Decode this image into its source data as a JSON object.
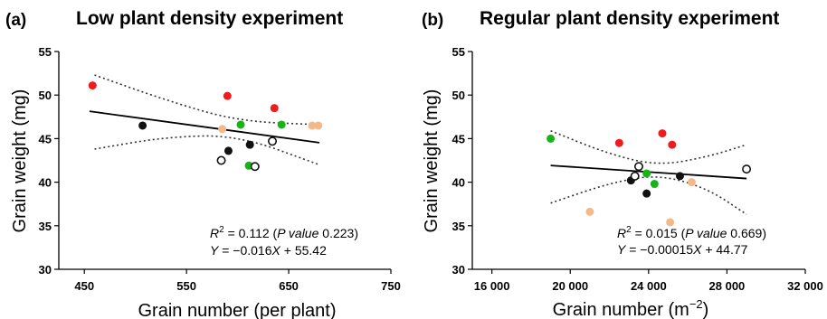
{
  "chart_data": [
    {
      "type": "scatter",
      "panel_label": "(a)",
      "title": "Low plant density experiment",
      "xlabel": "Grain number (per plant)",
      "ylabel": "Grain weight (mg)",
      "xlim": [
        425,
        750
      ],
      "ylim": [
        30,
        55
      ],
      "xticks": [
        450,
        550,
        650,
        750
      ],
      "xtick_labels": [
        "450",
        "550",
        "650",
        "750"
      ],
      "yticks": [
        30,
        35,
        40,
        45,
        50,
        55
      ],
      "ytick_labels": [
        "30",
        "35",
        "40",
        "45",
        "50",
        "55"
      ],
      "series": [
        {
          "color": "#ee1c1c",
          "marker": "filled",
          "points": [
            [
              458,
              51.1
            ],
            [
              590,
              49.9
            ],
            [
              636,
              48.5
            ]
          ]
        },
        {
          "color": "#16b416",
          "marker": "filled",
          "points": [
            [
              603,
              46.6
            ],
            [
              643,
              46.6
            ],
            [
              611,
              41.9
            ]
          ]
        },
        {
          "color": "#111111",
          "marker": "filled",
          "points": [
            [
              507,
              46.5
            ],
            [
              612,
              44.3
            ],
            [
              591,
              43.6
            ]
          ]
        },
        {
          "color": "#f3b98a",
          "marker": "filled",
          "points": [
            [
              585,
              46.1
            ],
            [
              673,
              46.5
            ],
            [
              679,
              46.5
            ]
          ]
        },
        {
          "color": "#111111",
          "marker": "open",
          "points": [
            [
              634,
              44.7
            ],
            [
              584,
              42.5
            ],
            [
              617,
              41.8
            ]
          ]
        }
      ],
      "fit": {
        "slope": -0.016,
        "intercept": 55.42,
        "x_range": [
          455,
          680
        ]
      },
      "confidence_band": {
        "x": [
          460,
          530,
          600,
          680
        ],
        "upper": [
          52.3,
          49.4,
          47.0,
          46.6
        ],
        "lower": [
          43.8,
          45.2,
          45.4,
          42.0
        ]
      },
      "annotation": {
        "r2_prefix": "R",
        "r2_sup": "2",
        "r2_value": " = 0.112 (",
        "p_label": "P value",
        "p_value": " 0.223)",
        "eq_var_y": "Y",
        "eq_mid": " = −0.016",
        "eq_var_x": "X",
        "eq_end": " + 55.42"
      }
    },
    {
      "type": "scatter",
      "panel_label": "(b)",
      "title": "Regular plant density experiment",
      "xlabel_main": "Grain number (m",
      "xlabel_sup": "−2",
      "xlabel_close": ")",
      "ylabel": "Grain weight (mg)",
      "xlim": [
        15000,
        32000
      ],
      "ylim": [
        30,
        55
      ],
      "xticks": [
        16000,
        20000,
        24000,
        28000,
        32000
      ],
      "xtick_labels": [
        "16 000",
        "20 000",
        "24 000",
        "28 000",
        "32 000"
      ],
      "yticks": [
        30,
        35,
        40,
        45,
        50,
        55
      ],
      "ytick_labels": [
        "30",
        "35",
        "40",
        "45",
        "50",
        "55"
      ],
      "series": [
        {
          "color": "#ee1c1c",
          "marker": "filled",
          "points": [
            [
              22500,
              44.5
            ],
            [
              24700,
              45.6
            ],
            [
              25200,
              44.3
            ]
          ]
        },
        {
          "color": "#16b416",
          "marker": "filled",
          "points": [
            [
              19000,
              45.0
            ],
            [
              23900,
              41.0
            ],
            [
              24300,
              39.8
            ]
          ]
        },
        {
          "color": "#111111",
          "marker": "filled",
          "points": [
            [
              25600,
              40.7
            ],
            [
              23100,
              40.2
            ],
            [
              23900,
              38.7
            ]
          ]
        },
        {
          "color": "#f3b98a",
          "marker": "filled",
          "points": [
            [
              26200,
              40.0
            ],
            [
              21000,
              36.6
            ],
            [
              25100,
              35.4
            ]
          ]
        },
        {
          "color": "#111111",
          "marker": "open",
          "points": [
            [
              23500,
              41.8
            ],
            [
              23300,
              40.7
            ],
            [
              29000,
              41.5
            ]
          ]
        }
      ],
      "fit": {
        "slope": -0.00015,
        "intercept": 44.77,
        "x_range": [
          19000,
          29000
        ]
      },
      "confidence_band": {
        "x": [
          19000,
          22000,
          24500,
          27000,
          29000
        ],
        "upper": [
          45.9,
          43.2,
          41.9,
          42.9,
          44.3
        ],
        "lower": [
          37.6,
          39.9,
          40.9,
          39.3,
          36.3
        ]
      },
      "annotation": {
        "r2_prefix": "R",
        "r2_sup": "2",
        "r2_value": " = 0.015 (",
        "p_label": "P value",
        "p_value": " 0.669)",
        "eq_var_y": "Y",
        "eq_mid": " = −0.00015",
        "eq_var_x": "X",
        "eq_end": " + 44.77"
      }
    }
  ]
}
